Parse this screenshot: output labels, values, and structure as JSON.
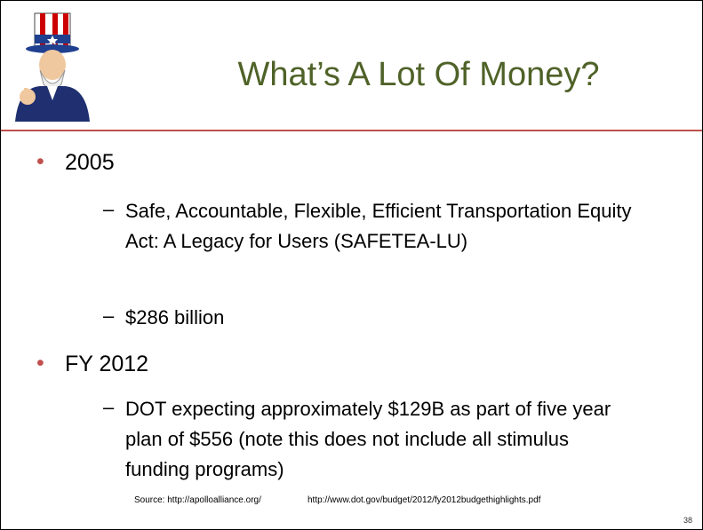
{
  "header": {
    "title": "What’s A Lot Of Money?"
  },
  "bullets": [
    {
      "text": "2005",
      "items": [
        "Safe, Accountable, Flexible, Efficient Transportation Equity Act: A Legacy for Users (SAFETEA-LU)",
        "$286 billion"
      ]
    },
    {
      "text": "FY 2012",
      "items": [
        "DOT expecting approximately $129B as part of five year plan of $556 (note this does not include all stimulus funding programs)"
      ]
    }
  ],
  "footer": {
    "sources": [
      "Source: http://apolloalliance.org/",
      "http://www.dot.gov/budget/2012/fy2012budgethighlights.pdf"
    ],
    "page_number": "38"
  }
}
